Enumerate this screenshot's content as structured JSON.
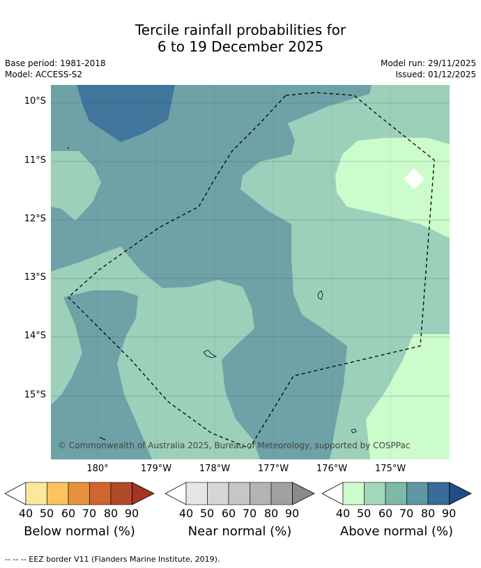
{
  "title_line1": "Tercile rainfall probabilities for",
  "title_line2": "6 to 19 December 2025",
  "base_period": "Base period: 1981-2018",
  "model": "Model: ACCESS-S2",
  "model_run": "Model run: 29/11/2025",
  "issued": "Issued: 01/12/2025",
  "lat_labels": [
    "10°S",
    "11°S",
    "12°S",
    "13°S",
    "14°S",
    "15°S"
  ],
  "lon_labels": [
    "180°",
    "179°W",
    "178°W",
    "177°W",
    "176°W",
    "175°W"
  ],
  "copyright": "© Commonwealth of Australia 2025, Bureau of Meteorology, supported by COSPPac",
  "colorbars": [
    {
      "title": "Below normal (%)",
      "ticks": [
        "40",
        "50",
        "60",
        "70",
        "80",
        "90"
      ],
      "colors": [
        "#ffffff",
        "#fde89a",
        "#fcc35e",
        "#e8923f",
        "#d2642f",
        "#b0492a",
        "#a33522"
      ]
    },
    {
      "title": "Near normal (%)",
      "ticks": [
        "40",
        "50",
        "60",
        "70",
        "80",
        "90"
      ],
      "colors": [
        "#ffffff",
        "#e6e6e6",
        "#d6d6d6",
        "#c6c6c6",
        "#b4b4b4",
        "#a0a0a0",
        "#8a8a8a"
      ]
    },
    {
      "title": "Above normal (%)",
      "ticks": [
        "40",
        "50",
        "60",
        "70",
        "80",
        "90"
      ],
      "colors": [
        "#ffffff",
        "#ccfccb",
        "#a3d8bb",
        "#7eb8a8",
        "#5e98a3",
        "#3b6b9a",
        "#1f4d86"
      ]
    }
  ],
  "footnote": "--  --  -- EEZ border V11 (Flanders Marine Institute, 2019)."
}
